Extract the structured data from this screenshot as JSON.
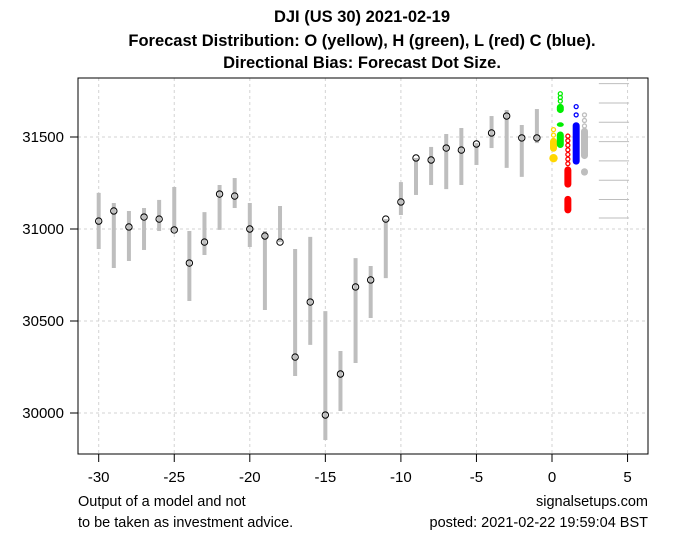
{
  "chart_data": {
    "type": "range-bar",
    "title": "DJI (US 30) 2021-02-19",
    "subtitle_lines": [
      "Forecast Distribution: O (yellow), H (green), L (red) C (blue).",
      "Directional Bias: Forecast Dot Size."
    ],
    "xlabel": "",
    "ylabel": "",
    "xlim": [
      -31.5,
      6.3
    ],
    "ylim": [
      29780,
      31790
    ],
    "x_ticks": [
      -30,
      -25,
      -20,
      -15,
      -10,
      -5,
      0,
      5
    ],
    "x_tick_labels": [
      "-30",
      "-25",
      "-20",
      "-15",
      "-10",
      "-5",
      "0",
      "5"
    ],
    "y_ticks": [
      30000,
      30500,
      31000,
      31500
    ],
    "y_tick_labels": [
      "30000",
      "30500",
      "31000",
      "31500"
    ],
    "grid": true,
    "history": {
      "x": [
        -30,
        -29,
        -28,
        -27,
        -26,
        -25,
        -24,
        -23,
        -22,
        -21,
        -20,
        -19,
        -18,
        -17,
        -16,
        -15,
        -14,
        -13,
        -12,
        -11,
        -10,
        -9,
        -8,
        -7,
        -6,
        -5,
        -4,
        -3,
        -2,
        -1
      ],
      "high": [
        31196,
        31141,
        31098,
        31114,
        31158,
        31228,
        30989,
        31092,
        31239,
        31277,
        31141,
        30989,
        31125,
        30891,
        30957,
        30554,
        30337,
        30842,
        30799,
        31054,
        31255,
        31386,
        31446,
        31516,
        31549,
        31467,
        31614,
        31647,
        31565,
        31652
      ],
      "low": [
        30891,
        30788,
        30826,
        30886,
        30989,
        30984,
        30609,
        30859,
        30995,
        31114,
        30902,
        30560,
        30929,
        30201,
        30370,
        29853,
        30011,
        30272,
        30516,
        30733,
        31076,
        31185,
        31239,
        31217,
        31239,
        31348,
        31440,
        31332,
        31283,
        31467
      ],
      "close": [
        31043,
        31098,
        31011,
        31065,
        31054,
        30995,
        30815,
        30929,
        31190,
        31179,
        31000,
        30962,
        30929,
        30304,
        30603,
        29989,
        30212,
        30685,
        30723,
        31054,
        31147,
        31386,
        31375,
        31440,
        31429,
        31462,
        31522,
        31614,
        31495,
        31495
      ]
    },
    "forecast": [
      {
        "name": "O",
        "color_name": "yellow",
        "color": "#ffd700",
        "x": 0.1,
        "outline": [
          31540,
          31510
        ],
        "filled_ranges": [
          [
            31420,
            31495
          ]
        ],
        "big_dots": [
          31385
        ]
      },
      {
        "name": "H",
        "color_name": "green",
        "color": "#00ee00",
        "x": 0.55,
        "outline": [
          31735,
          31715,
          31695
        ],
        "filled_ranges": [
          [
            31630,
            31680
          ],
          [
            31555,
            31580
          ],
          [
            31440,
            31530
          ]
        ],
        "big_dots": []
      },
      {
        "name": "L",
        "color_name": "red",
        "color": "#ff0000",
        "x": 1.05,
        "outline": [
          31505,
          31480,
          31455,
          31430,
          31405,
          31380,
          31355
        ],
        "filled_ranges": [
          [
            31225,
            31340
          ]
        ],
        "big_dots": [],
        "filled_ranges_2": [
          [
            31085,
            31180
          ]
        ]
      },
      {
        "name": "C",
        "color_name": "blue",
        "color": "#0000ff",
        "x": 1.6,
        "outline": [
          31665,
          31620
        ],
        "filled_ranges": [
          [
            31350,
            31580
          ]
        ],
        "big_dots": []
      },
      {
        "name": "extra",
        "color_name": "gray",
        "color": "#bebebe",
        "x": 2.15,
        "outline": [
          31620,
          31590,
          31560
        ],
        "filled_ranges": [
          [
            31380,
            31550
          ],
          [
            31290,
            31330
          ]
        ],
        "big_dots": []
      }
    ],
    "reference_levels": [
      31790,
      31685,
      31580,
      31475,
      31370,
      31265,
      31160,
      31060
    ],
    "reference_x_range": [
      3.1,
      5.1
    ]
  },
  "footer": {
    "left_line1": "Output of a model and not",
    "left_line2": "to be taken as investment advice.",
    "right_line1": "signalsetups.com",
    "right_line2": "posted: 2021-02-22 19:59:04 BST"
  },
  "colors": {
    "history_bar": "#bebebe",
    "grid": "#d3d3d3",
    "axis": "#000000"
  }
}
